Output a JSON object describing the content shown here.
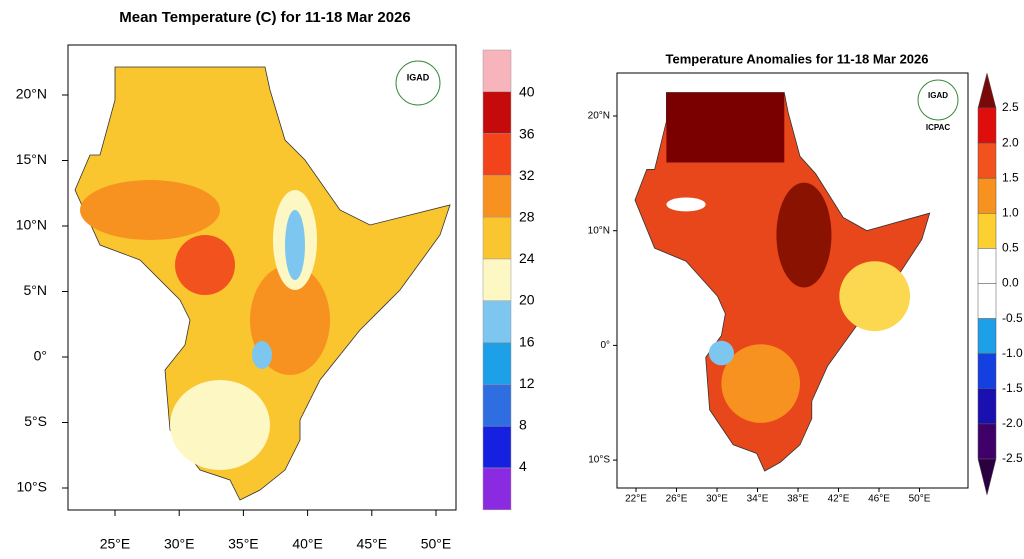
{
  "left_map": {
    "title": "Mean Temperature (C) for 11-18 Mar 2026",
    "logo": "IGAD",
    "x_labels": [
      "25°E",
      "30°E",
      "35°E",
      "40°E",
      "45°E",
      "50°E"
    ],
    "y_labels": [
      "20°N",
      "15°N",
      "10°N",
      "5°N",
      "0°",
      "5°S",
      "10°S"
    ],
    "colorbar_labels": [
      "40",
      "36",
      "32",
      "28",
      "24",
      "20",
      "16",
      "12",
      "8",
      "4"
    ]
  },
  "right_map": {
    "title": "Temperature Anomalies for 11-18 Mar 2026",
    "logo": "IGAD",
    "logo_caption": "ICPAC",
    "x_labels": [
      "22°E",
      "26°E",
      "30°E",
      "34°E",
      "38°E",
      "42°E",
      "46°E",
      "50°E"
    ],
    "y_labels": [
      "20°N",
      "10°N",
      "0°",
      "10°S"
    ],
    "colorbar_labels": [
      "2.5",
      "2.0",
      "1.5",
      "1.0",
      "0.5",
      "0.0",
      "-0.5",
      "-1.0",
      "-1.5",
      "-2.0",
      "-2.5"
    ]
  }
}
